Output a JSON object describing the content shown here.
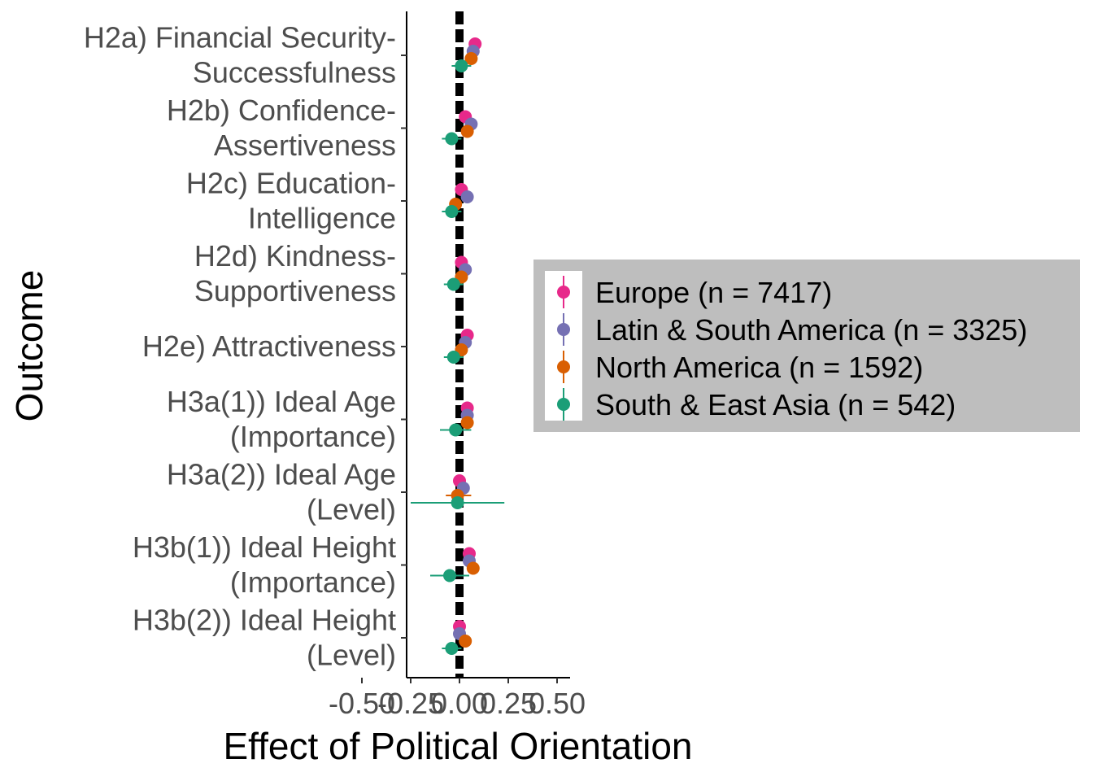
{
  "chart_data": {
    "type": "scatter",
    "xlabel": "Effect of Political Orientation",
    "ylabel": "Outcome",
    "xticks": [
      "-0.50",
      "-0.25",
      "0.00",
      "0.25",
      "0.50"
    ],
    "xlim": [
      -0.55,
      0.55
    ],
    "reference_line_x": 0,
    "reference_line_style": "thick black dashed",
    "grid": false,
    "legend_position": "right",
    "categories": [
      [
        "H2a) Financial Security-",
        "Successfulness"
      ],
      [
        "H2b) Confidence-",
        "Assertiveness"
      ],
      [
        "H2c) Education-",
        "Intelligence"
      ],
      [
        "H2d) Kindness-",
        "Supportiveness"
      ],
      [
        "H2e) Attractiveness"
      ],
      [
        "H3a(1)) Ideal Age ",
        "(Importance)"
      ],
      [
        "H3a(2)) Ideal Age ",
        "(Level)"
      ],
      [
        "H3b(1)) Ideal Height ",
        "(Importance)"
      ],
      [
        "H3b(2)) Ideal Height ",
        "(Level)"
      ]
    ],
    "series": [
      {
        "name": "Europe (n = 7417)",
        "color": "#e7298a",
        "estimates": [
          0.08,
          0.03,
          0.01,
          0.01,
          0.04,
          0.04,
          0.0,
          0.05,
          0.0
        ],
        "ci_low": [
          0.06,
          0.01,
          -0.01,
          -0.01,
          0.02,
          0.02,
          -0.02,
          0.03,
          -0.02
        ],
        "ci_high": [
          0.1,
          0.05,
          0.03,
          0.03,
          0.06,
          0.06,
          0.02,
          0.07,
          0.02
        ]
      },
      {
        "name": "Latin & South America (n = 3325)",
        "color": "#7570b3",
        "estimates": [
          0.07,
          0.06,
          0.04,
          0.03,
          0.03,
          0.04,
          0.02,
          0.05,
          0.0
        ],
        "ci_low": [
          0.05,
          0.04,
          0.02,
          0.01,
          0.01,
          0.02,
          -0.01,
          0.03,
          -0.02
        ],
        "ci_high": [
          0.09,
          0.08,
          0.06,
          0.05,
          0.05,
          0.06,
          0.05,
          0.07,
          0.02
        ]
      },
      {
        "name": "North America (n = 1592)",
        "color": "#d95f02",
        "estimates": [
          0.06,
          0.04,
          -0.02,
          0.01,
          0.01,
          0.04,
          -0.01,
          0.07,
          0.03
        ],
        "ci_low": [
          0.03,
          0.01,
          -0.05,
          -0.02,
          -0.02,
          0.01,
          -0.07,
          0.04,
          0.0
        ],
        "ci_high": [
          0.09,
          0.07,
          0.01,
          0.04,
          0.04,
          0.07,
          0.06,
          0.1,
          0.06
        ]
      },
      {
        "name": "South & East Asia (n = 542)",
        "color": "#1b9e77",
        "estimates": [
          0.01,
          -0.04,
          -0.04,
          -0.03,
          -0.03,
          -0.02,
          -0.01,
          -0.05,
          -0.04
        ],
        "ci_low": [
          -0.04,
          -0.09,
          -0.09,
          -0.08,
          -0.08,
          -0.1,
          -0.25,
          -0.15,
          -0.09
        ],
        "ci_high": [
          0.06,
          0.01,
          0.01,
          0.02,
          0.02,
          0.06,
          0.23,
          0.05,
          0.01
        ]
      }
    ]
  }
}
